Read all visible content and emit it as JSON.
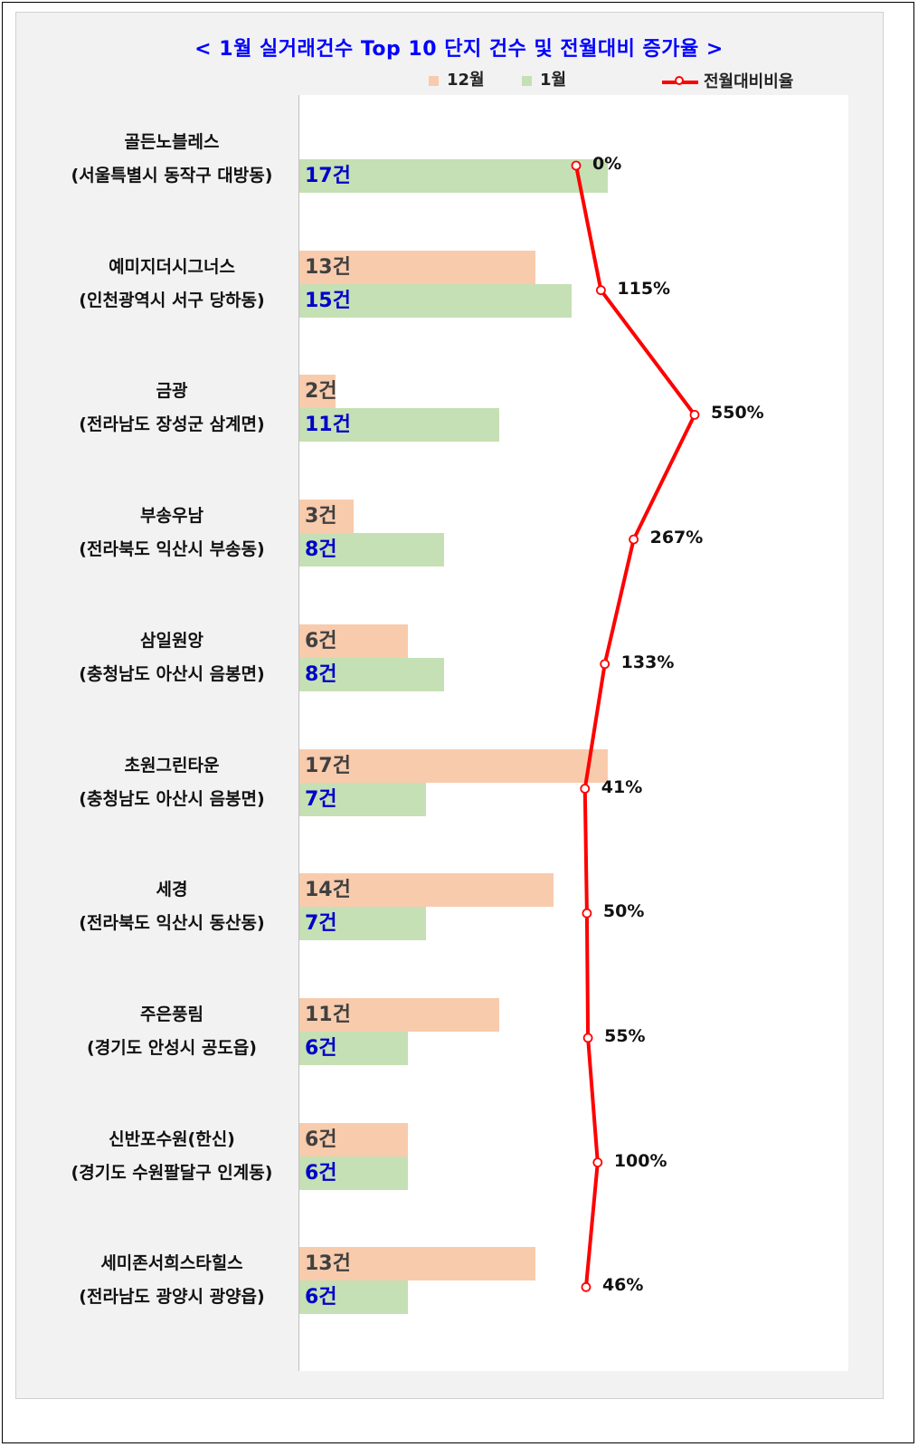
{
  "title": "< 1월 실거래건수 Top 10 단지 건수 및 전월대비 증가율 >",
  "legend": {
    "dec": "12월",
    "jan": "1월",
    "ratio": "전월대비비율"
  },
  "colors": {
    "dec": "#f8cbad",
    "jan": "#c5e0b4",
    "ratio": "#ff0000",
    "title": "#0000ff",
    "jan_label": "#0000cc"
  },
  "chart_data": {
    "type": "bar",
    "orientation": "horizontal",
    "title": "< 1월 실거래건수 Top 10 단지 건수 및 전월대비 증가율 >",
    "categories": [
      {
        "name": "골든노블레스",
        "region": "(서울특별시 동작구 대방동)"
      },
      {
        "name": "예미지더시그너스",
        "region": "(인천광역시 서구 당하동)"
      },
      {
        "name": "금광",
        "region": "(전라남도 장성군 삼계면)"
      },
      {
        "name": "부송우남",
        "region": "(전라북도 익산시 부송동)"
      },
      {
        "name": "삼일원앙",
        "region": "(충청남도 아산시 음봉면)"
      },
      {
        "name": "초원그린타운",
        "region": "(충청남도 아산시 음봉면)"
      },
      {
        "name": "세경",
        "region": "(전라북도 익산시 동산동)"
      },
      {
        "name": "주은풍림",
        "region": "(경기도 안성시 공도읍)"
      },
      {
        "name": "신반포수원(한신)",
        "region": "(경기도 수원팔달구 인계동)"
      },
      {
        "name": "세미존서희스타힐스",
        "region": "(전라남도 광양시 광양읍)"
      }
    ],
    "series": [
      {
        "name": "12월",
        "values": [
          null,
          13,
          2,
          3,
          6,
          17,
          14,
          11,
          6,
          13
        ],
        "labels": [
          "",
          "13건",
          "2건",
          "3건",
          "6건",
          "17건",
          "14건",
          "11건",
          "6건",
          "13건"
        ]
      },
      {
        "name": "1월",
        "values": [
          17,
          15,
          11,
          8,
          8,
          7,
          7,
          6,
          6,
          6
        ],
        "labels": [
          "17건",
          "15건",
          "11건",
          "8건",
          "8건",
          "7건",
          "7건",
          "6건",
          "6건",
          "6건"
        ]
      },
      {
        "name": "전월대비비율",
        "type": "line",
        "values": [
          0,
          115,
          550,
          267,
          133,
          41,
          50,
          55,
          100,
          46
        ],
        "labels": [
          "0%",
          "115%",
          "550%",
          "267%",
          "133%",
          "41%",
          "50%",
          "55%",
          "100%",
          "46%"
        ]
      }
    ],
    "xlim_bars": [
      0,
      17
    ],
    "legend_position": "top"
  }
}
